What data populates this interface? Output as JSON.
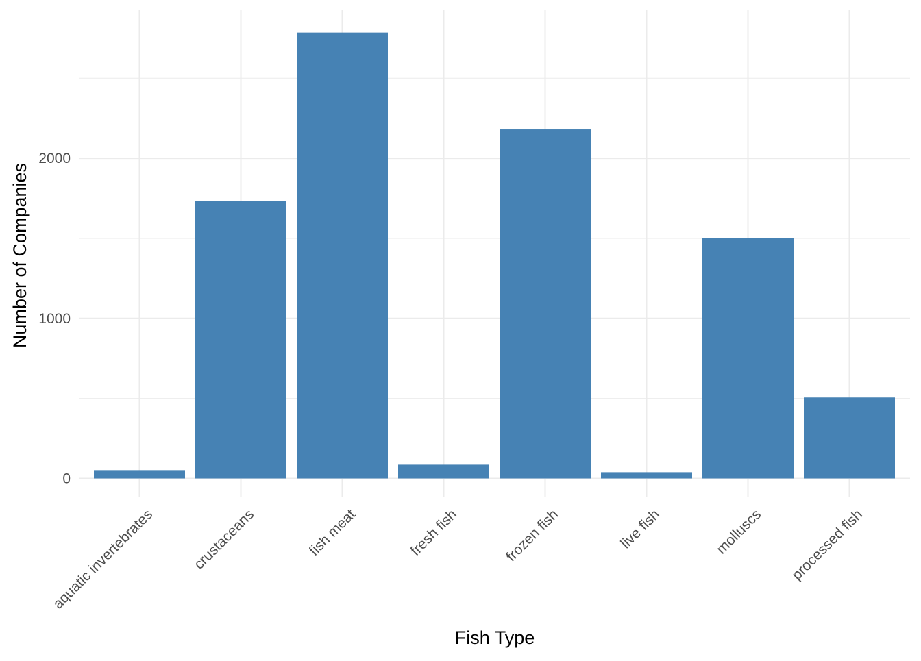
{
  "chart_data": {
    "type": "bar",
    "title": "",
    "xlabel": "Fish Type",
    "ylabel": "Number of Companies",
    "categories": [
      "aquatic invertebrates",
      "crustaceans",
      "fish meat",
      "fresh fish",
      "frozen fish",
      "live fish",
      "molluscs",
      "processed fish"
    ],
    "values": [
      52,
      1733,
      2785,
      86,
      2180,
      39,
      1502,
      506
    ],
    "ylim": [
      0,
      2930
    ],
    "y_ticks": [
      0,
      1000,
      2000
    ],
    "y_tick_labels": [
      "0",
      "1000",
      "2000"
    ],
    "grid": true,
    "bar_color": "#4682B4",
    "grid_color": "#EBEBEB",
    "axis_text_color": "#4D4D4D",
    "axis_title_color": "#000000"
  }
}
